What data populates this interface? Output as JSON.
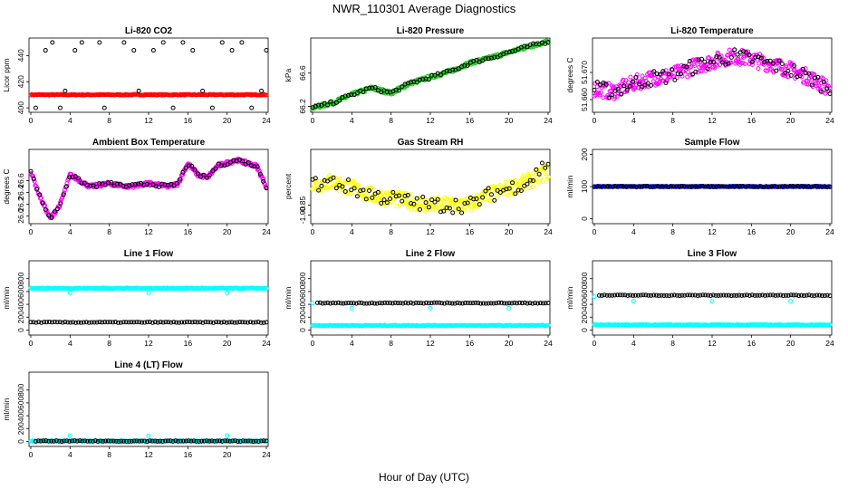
{
  "figure": {
    "title": "NWR_110301  Average Diagnostics",
    "xlabel": "Hour of Day (UTC)"
  },
  "colors": {
    "black": "#000000",
    "red": "#ff0000",
    "green": "#22cc22",
    "magenta": "#ff00ff",
    "yellow": "#ffff00",
    "blue": "#0000ff",
    "cyan": "#00ffff"
  },
  "chart_data": [
    {
      "type": "scatter",
      "title": "Li-820 CO2",
      "ylabel": "Licor ppm",
      "xlim": [
        0,
        24
      ],
      "ylim": [
        398,
        452
      ],
      "xticks": [
        "0",
        "4",
        "8",
        "12",
        "16",
        "20",
        "24"
      ],
      "yticks": [
        "400",
        "420",
        "440"
      ],
      "series": [
        {
          "color": "red",
          "kind": "band",
          "x_range": [
            0,
            24
          ],
          "y": 410
        },
        {
          "color": "black",
          "kind": "points",
          "x": [
            0.5,
            1.5,
            3,
            4.5,
            7.5,
            10.5,
            12.5,
            14.5,
            16.5,
            18.5,
            20.5,
            22.5,
            24
          ],
          "y": [
            400,
            444,
            400,
            444,
            400,
            444,
            444,
            400,
            444,
            400,
            444,
            400,
            444
          ]
        },
        {
          "color": "black",
          "kind": "points",
          "x": [
            2.2,
            3.5,
            5.2,
            7,
            9.5,
            11,
            13.5,
            15.5,
            17.5,
            19.5,
            21.5,
            23.5
          ],
          "y": [
            450,
            413,
            450,
            450,
            450,
            413,
            450,
            450,
            413,
            450,
            450,
            413
          ]
        }
      ]
    },
    {
      "type": "scatter",
      "title": "Li-820 Pressure",
      "ylabel": "kPa",
      "xlim": [
        0,
        24
      ],
      "ylim": [
        66.15,
        67.0
      ],
      "xticks": [
        "0",
        "4",
        "8",
        "12",
        "16",
        "20",
        "24"
      ],
      "yticks": [
        "66.2",
        "66.6"
      ],
      "series": [
        {
          "color": "green",
          "kind": "trend",
          "x": [
            0,
            2,
            4,
            6,
            8,
            10,
            12,
            14,
            16,
            18,
            20,
            22,
            24
          ],
          "y": [
            66.18,
            66.24,
            66.34,
            66.42,
            66.36,
            66.48,
            66.55,
            66.62,
            66.72,
            66.78,
            66.85,
            66.92,
            66.98
          ]
        },
        {
          "color": "black",
          "kind": "trend-sparse",
          "x": [
            0,
            2,
            4,
            6,
            8,
            10,
            12,
            14,
            16,
            18,
            20,
            22,
            24
          ],
          "y": [
            66.18,
            66.24,
            66.34,
            66.42,
            66.36,
            66.48,
            66.55,
            66.62,
            66.72,
            66.78,
            66.85,
            66.92,
            66.98
          ]
        }
      ]
    },
    {
      "type": "scatter",
      "title": "Li-820 Temperature",
      "ylabel": "degrees C",
      "xlim": [
        0,
        24
      ],
      "ylim": [
        51.656,
        51.682
      ],
      "xticks": [
        "0",
        "4",
        "8",
        "12",
        "16",
        "20",
        "24"
      ],
      "yticks": [
        "51.660",
        "51.670"
      ],
      "series": [
        {
          "color": "magenta",
          "kind": "trend-noisy",
          "x": [
            0,
            2,
            4,
            6,
            8,
            10,
            12,
            14,
            16,
            18,
            20,
            22,
            24
          ],
          "y": [
            51.664,
            51.663,
            51.666,
            51.668,
            51.669,
            51.672,
            51.674,
            51.676,
            51.675,
            51.673,
            51.671,
            51.668,
            51.664
          ]
        },
        {
          "color": "black",
          "kind": "trend-noisy-sparse",
          "x": [
            0,
            2,
            4,
            6,
            8,
            10,
            12,
            14,
            16,
            18,
            20,
            22,
            24
          ],
          "y": [
            51.664,
            51.663,
            51.666,
            51.668,
            51.669,
            51.672,
            51.674,
            51.676,
            51.675,
            51.673,
            51.671,
            51.668,
            51.664
          ]
        }
      ]
    },
    {
      "type": "scatter",
      "title": "Ambient Box Temperature",
      "ylabel": "degrees C",
      "xlim": [
        0,
        24
      ],
      "ylim": [
        25.9,
        27.1
      ],
      "xticks": [
        "0",
        "4",
        "8",
        "12",
        "16",
        "20",
        "24"
      ],
      "yticks": [
        "26.0",
        "26.2",
        "26.4",
        "26.6"
      ],
      "series": [
        {
          "color": "magenta",
          "kind": "trend",
          "x": [
            0,
            1,
            2,
            3,
            4,
            6,
            8,
            10,
            12,
            14,
            15,
            16,
            17,
            18,
            19,
            20,
            21,
            22,
            23,
            24
          ],
          "y": [
            26.75,
            26.3,
            25.95,
            26.2,
            26.7,
            26.5,
            26.55,
            26.5,
            26.55,
            26.5,
            26.55,
            26.9,
            26.7,
            26.65,
            26.85,
            26.9,
            26.95,
            26.9,
            26.85,
            26.5
          ]
        },
        {
          "color": "black",
          "kind": "trend-sparse",
          "x": [
            0,
            1,
            2,
            3,
            4,
            6,
            8,
            10,
            12,
            14,
            15,
            16,
            17,
            18,
            19,
            20,
            21,
            22,
            23,
            24
          ],
          "y": [
            26.75,
            26.3,
            25.95,
            26.2,
            26.7,
            26.5,
            26.55,
            26.5,
            26.55,
            26.5,
            26.55,
            26.9,
            26.7,
            26.65,
            26.85,
            26.9,
            26.95,
            26.9,
            26.85,
            26.5
          ]
        }
      ]
    },
    {
      "type": "scatter",
      "title": "Gas Stream RH",
      "ylabel": "percent",
      "xlim": [
        0,
        24
      ],
      "ylim": [
        -1.1,
        -0.05
      ],
      "xticks": [
        "0",
        "4",
        "8",
        "12",
        "16",
        "20",
        "24"
      ],
      "yticks": [
        "-1.00",
        "-0.85"
      ],
      "series": [
        {
          "color": "yellow",
          "kind": "trend-noisy",
          "x": [
            0,
            2,
            4,
            6,
            8,
            10,
            12,
            14,
            16,
            18,
            20,
            22,
            24
          ],
          "y": [
            -0.55,
            -0.5,
            -0.6,
            -0.7,
            -0.75,
            -0.8,
            -0.85,
            -0.85,
            -0.85,
            -0.7,
            -0.6,
            -0.5,
            -0.35
          ]
        },
        {
          "color": "black",
          "kind": "trend-noisy-sparse",
          "x": [
            0,
            2,
            4,
            6,
            8,
            10,
            12,
            14,
            16,
            18,
            20,
            22,
            24
          ],
          "y": [
            -0.55,
            -0.5,
            -0.6,
            -0.7,
            -0.75,
            -0.8,
            -0.85,
            -0.85,
            -0.85,
            -0.7,
            -0.6,
            -0.5,
            -0.2
          ]
        }
      ]
    },
    {
      "type": "scatter",
      "title": "Sample Flow",
      "ylabel": "ml/min",
      "xlim": [
        0,
        24
      ],
      "ylim": [
        -10,
        210
      ],
      "xticks": [
        "0",
        "4",
        "8",
        "12",
        "16",
        "20",
        "24"
      ],
      "yticks": [
        "0",
        "100",
        "200"
      ],
      "series": [
        {
          "color": "blue",
          "kind": "band",
          "x_range": [
            0,
            24
          ],
          "y": 100
        },
        {
          "color": "black",
          "kind": "band-sparse",
          "x_range": [
            0,
            24
          ],
          "y": 100
        }
      ]
    },
    {
      "type": "scatter",
      "title": "Line 1 Flow",
      "ylabel": "ml/min",
      "xlim": [
        0,
        24
      ],
      "ylim": [
        -50,
        1050
      ],
      "xticks": [
        "0",
        "4",
        "8",
        "12",
        "16",
        "20",
        "24"
      ],
      "yticks": [
        "0",
        "200",
        "400",
        "600",
        "800"
      ],
      "series": [
        {
          "color": "cyan",
          "kind": "band",
          "x_range": [
            0,
            24
          ],
          "y": 650,
          "outliers_x": [
            4,
            12,
            20
          ],
          "outliers_y": [
            580,
            580,
            580
          ]
        },
        {
          "color": "black",
          "kind": "band-sparse",
          "x_range": [
            0,
            24
          ],
          "y": 120
        }
      ]
    },
    {
      "type": "scatter",
      "title": "Line 2 Flow",
      "ylabel": "ml/min",
      "xlim": [
        0,
        24
      ],
      "ylim": [
        -50,
        1050
      ],
      "xticks": [
        "0",
        "4",
        "8",
        "12",
        "16",
        "20",
        "24"
      ],
      "yticks": [
        "0",
        "200",
        "400",
        "600",
        "800"
      ],
      "series": [
        {
          "color": "cyan",
          "kind": "band",
          "x_range": [
            0,
            24
          ],
          "y": 70,
          "outliers_x": [
            0,
            4,
            12,
            20
          ],
          "outliers_y": [
            420,
            340,
            340,
            340
          ]
        },
        {
          "color": "black",
          "kind": "band-sparse",
          "x_range": [
            0.5,
            24
          ],
          "y": 420
        }
      ]
    },
    {
      "type": "scatter",
      "title": "Line 3 Flow",
      "ylabel": "ml/min",
      "xlim": [
        0,
        24
      ],
      "ylim": [
        -50,
        1050
      ],
      "xticks": [
        "0",
        "4",
        "8",
        "12",
        "16",
        "20",
        "24"
      ],
      "yticks": [
        "0",
        "200",
        "400",
        "600",
        "800"
      ],
      "series": [
        {
          "color": "cyan",
          "kind": "band",
          "x_range": [
            0,
            24
          ],
          "y": 80,
          "outliers_x": [
            0,
            4,
            12,
            20
          ],
          "outliers_y": [
            520,
            450,
            450,
            450
          ]
        },
        {
          "color": "black",
          "kind": "band-sparse",
          "x_range": [
            0.5,
            24
          ],
          "y": 540
        }
      ]
    },
    {
      "type": "scatter",
      "title": "Line 4 (LT) Flow",
      "ylabel": "ml/min",
      "xlim": [
        0,
        24
      ],
      "ylim": [
        -50,
        1050
      ],
      "xticks": [
        "0",
        "4",
        "8",
        "12",
        "16",
        "20",
        "24"
      ],
      "yticks": [
        "0",
        "200",
        "400",
        "600",
        "800"
      ],
      "series": [
        {
          "color": "cyan",
          "kind": "band",
          "x_range": [
            0,
            24
          ],
          "y": 5,
          "outliers_x": [
            4,
            12,
            20
          ],
          "outliers_y": [
            90,
            90,
            90
          ]
        },
        {
          "color": "black",
          "kind": "band-sparse",
          "x_range": [
            0.5,
            24
          ],
          "y": 5
        }
      ]
    }
  ]
}
